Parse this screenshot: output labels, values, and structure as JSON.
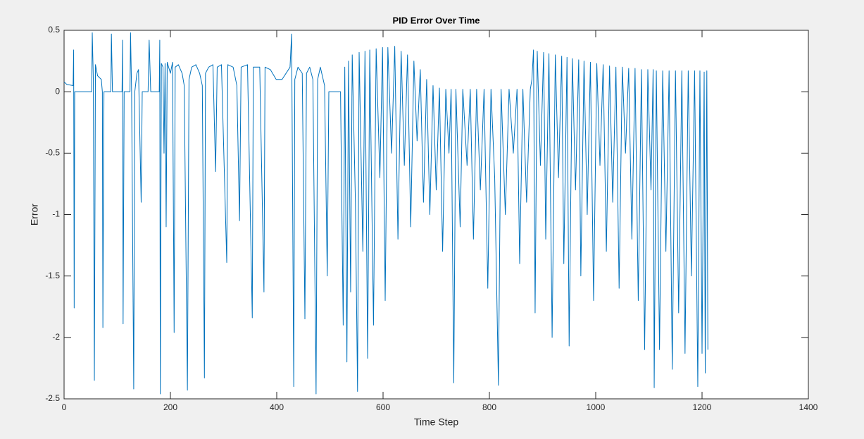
{
  "chart_data": {
    "type": "line",
    "title": "PID Error Over Time",
    "x_label": "Time Step",
    "y_label": "Error",
    "color": "#0072bd",
    "xlim": [
      0,
      1400
    ],
    "xticks": [
      0,
      200,
      400,
      600,
      800,
      1000,
      1200,
      1400
    ],
    "ylim": [
      -2.5,
      0.5
    ],
    "yticks": [
      0.5,
      0,
      -0.5,
      -1,
      -1.5,
      -2,
      -2.5
    ],
    "x": [
      0,
      5,
      17,
      18,
      19,
      20,
      52,
      53,
      55,
      57,
      59,
      63,
      70,
      72,
      73,
      75,
      88,
      89,
      91,
      109,
      110,
      111,
      113,
      124,
      125,
      127,
      131,
      133,
      137,
      140,
      145,
      147,
      158,
      160,
      163,
      179,
      180,
      181,
      183,
      186,
      188,
      190,
      192,
      194,
      200,
      204,
      207,
      209,
      215,
      222,
      226,
      232,
      235,
      240,
      248,
      255,
      260,
      264,
      266,
      272,
      280,
      285,
      288,
      296,
      306,
      308,
      318,
      325,
      330,
      333,
      345,
      354,
      356,
      368,
      376,
      378,
      388,
      399,
      410,
      425,
      428,
      432,
      434,
      440,
      448,
      453,
      456,
      462,
      468,
      474,
      477,
      482,
      490,
      495,
      498,
      520,
      525,
      528,
      532,
      535,
      539,
      542,
      548,
      552,
      555,
      562,
      566,
      571,
      575,
      582,
      587,
      594,
      599,
      604,
      609,
      616,
      622,
      628,
      634,
      640,
      646,
      652,
      658,
      664,
      670,
      676,
      682,
      688,
      694,
      700,
      706,
      712,
      718,
      724,
      728,
      733,
      737,
      745,
      750,
      758,
      764,
      770,
      776,
      783,
      790,
      797,
      803,
      810,
      817,
      822,
      830,
      837,
      845,
      852,
      857,
      863,
      870,
      877,
      880,
      883,
      886,
      890,
      896,
      902,
      906,
      912,
      918,
      924,
      930,
      936,
      940,
      946,
      950,
      956,
      962,
      968,
      972,
      978,
      984,
      990,
      996,
      1002,
      1008,
      1014,
      1020,
      1026,
      1032,
      1038,
      1044,
      1050,
      1056,
      1062,
      1068,
      1074,
      1080,
      1086,
      1092,
      1098,
      1104,
      1108,
      1110,
      1114,
      1120,
      1126,
      1132,
      1138,
      1144,
      1150,
      1156,
      1162,
      1168,
      1174,
      1180,
      1186,
      1192,
      1196,
      1200,
      1204,
      1206,
      1209,
      1211
    ],
    "values": [
      0.08,
      0.06,
      0.05,
      0.34,
      -1.76,
      0,
      0,
      0.48,
      0.1,
      -2.35,
      0.22,
      0.13,
      0.1,
      0,
      -1.92,
      0,
      0,
      0.47,
      0,
      0,
      0.42,
      -1.89,
      0,
      0,
      0.48,
      0,
      -2.42,
      0,
      0.15,
      0.18,
      -0.9,
      0,
      0,
      0.42,
      0,
      0,
      0.42,
      -2.46,
      0.23,
      0.2,
      -0.5,
      0.23,
      -1.1,
      0.24,
      0.15,
      0.24,
      -1.96,
      0.2,
      0.22,
      0.15,
      0.05,
      -2.43,
      0.1,
      0.2,
      0.22,
      0.15,
      0.05,
      -2.33,
      0.15,
      0.2,
      0.22,
      -0.65,
      0.2,
      0.22,
      -1.39,
      0.22,
      0.2,
      0.05,
      -1.05,
      0.2,
      0.22,
      -1.84,
      0.2,
      0.2,
      -1.63,
      0.2,
      0.18,
      0.1,
      0.1,
      0.2,
      0.47,
      -2.4,
      0.1,
      0.2,
      0.15,
      -1.85,
      0.15,
      0.2,
      0.1,
      -2.46,
      0.1,
      0.2,
      0.05,
      -1.5,
      0,
      0,
      -1.9,
      0.2,
      -2.2,
      0.25,
      -1.63,
      0.3,
      -0.9,
      -2.44,
      0.32,
      -1.3,
      0.33,
      -2.17,
      0.34,
      -1.9,
      0.35,
      -0.7,
      0.36,
      -1.7,
      0.36,
      -0.5,
      0.37,
      -1.2,
      0.33,
      -0.6,
      0.3,
      -1.1,
      0.25,
      -0.4,
      0.18,
      -0.9,
      0.1,
      -1,
      0.05,
      -0.8,
      0.03,
      -1.3,
      0.02,
      -0.5,
      0.02,
      -2.37,
      0.02,
      -1.1,
      0.02,
      -0.6,
      0.02,
      -1.2,
      0.02,
      -0.8,
      0.02,
      -1.6,
      0.02,
      -0.7,
      -2.39,
      0.02,
      -1,
      0.02,
      -0.5,
      0.02,
      -1.4,
      0.02,
      -0.9,
      0.02,
      0.1,
      0.34,
      -1.8,
      0.33,
      -0.6,
      0.32,
      -1.2,
      0.31,
      -2,
      0.3,
      -0.7,
      0.29,
      -1.4,
      0.28,
      -2.07,
      0.27,
      -0.8,
      0.26,
      -1.5,
      0.25,
      -1,
      0.24,
      -1.7,
      0.23,
      -0.6,
      0.22,
      -1.3,
      0.21,
      -0.9,
      0.2,
      -1.6,
      0.2,
      -0.5,
      0.19,
      -1.2,
      0.19,
      -1.7,
      0.18,
      -2.1,
      0.18,
      -0.8,
      0.18,
      -2.41,
      0.17,
      -2.1,
      0.17,
      -1.3,
      0.17,
      -2.26,
      0.17,
      -1.8,
      0.17,
      -2.13,
      0.17,
      -1.5,
      0.17,
      -2.4,
      0.17,
      -2.13,
      0.16,
      -2.29,
      0.17,
      -2.1
    ]
  }
}
